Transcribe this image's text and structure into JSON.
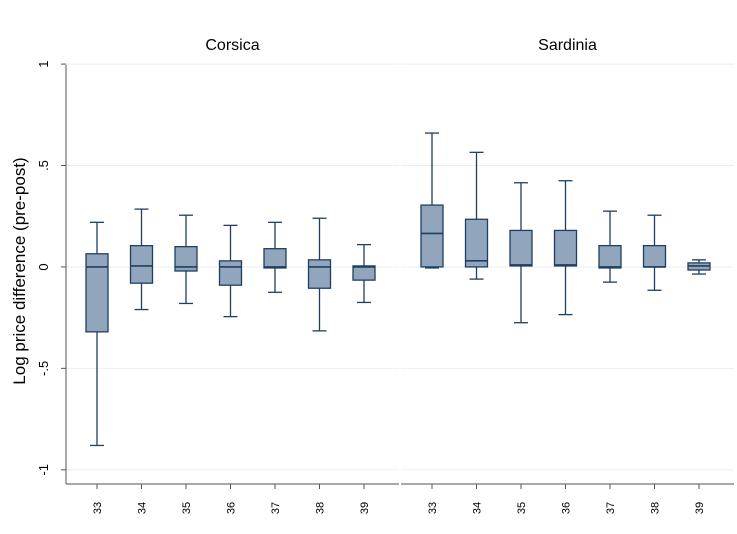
{
  "chart_data": {
    "type": "box",
    "ylabel": "Log price difference (pre-post)",
    "ylim": [
      -1.07,
      1.03
    ],
    "yticks": [
      1,
      0.5,
      0,
      -0.5,
      -1
    ],
    "ytick_labels": [
      "1",
      ".5",
      "0",
      "-.5",
      "-1"
    ],
    "grid": true,
    "colors": {
      "box_fill": "#91a6bd",
      "box_stroke": "#1f3f5f",
      "grid": "#eeeeee",
      "axis": "#000000"
    },
    "panels": [
      {
        "title": "Corsica",
        "categories": [
          "33",
          "34",
          "35",
          "36",
          "37",
          "38",
          "39"
        ],
        "boxes": [
          {
            "whisker_low": -0.88,
            "q1": -0.32,
            "median": 0.0,
            "q3": 0.065,
            "whisker_high": 0.22
          },
          {
            "whisker_low": -0.21,
            "q1": -0.08,
            "median": 0.005,
            "q3": 0.105,
            "whisker_high": 0.285
          },
          {
            "whisker_low": -0.18,
            "q1": -0.02,
            "median": 0.0,
            "q3": 0.1,
            "whisker_high": 0.255
          },
          {
            "whisker_low": -0.245,
            "q1": -0.09,
            "median": 0.0,
            "q3": 0.03,
            "whisker_high": 0.205
          },
          {
            "whisker_low": -0.125,
            "q1": -0.005,
            "median": 0.0,
            "q3": 0.09,
            "whisker_high": 0.22
          },
          {
            "whisker_low": -0.315,
            "q1": -0.105,
            "median": 0.0,
            "q3": 0.035,
            "whisker_high": 0.24
          },
          {
            "whisker_low": -0.175,
            "q1": -0.065,
            "median": 0.0,
            "q3": 0.005,
            "whisker_high": 0.11
          }
        ]
      },
      {
        "title": "Sardinia",
        "categories": [
          "33",
          "34",
          "35",
          "36",
          "37",
          "38",
          "39"
        ],
        "boxes": [
          {
            "whisker_low": -0.005,
            "q1": 0.0,
            "median": 0.165,
            "q3": 0.305,
            "whisker_high": 0.66
          },
          {
            "whisker_low": -0.06,
            "q1": 0.0,
            "median": 0.03,
            "q3": 0.235,
            "whisker_high": 0.565
          },
          {
            "whisker_low": -0.275,
            "q1": 0.005,
            "median": 0.01,
            "q3": 0.18,
            "whisker_high": 0.415
          },
          {
            "whisker_low": -0.235,
            "q1": 0.005,
            "median": 0.01,
            "q3": 0.18,
            "whisker_high": 0.425
          },
          {
            "whisker_low": -0.075,
            "q1": -0.005,
            "median": 0.0,
            "q3": 0.105,
            "whisker_high": 0.275
          },
          {
            "whisker_low": -0.115,
            "q1": 0.0,
            "median": 0.0,
            "q3": 0.105,
            "whisker_high": 0.255
          },
          {
            "whisker_low": -0.035,
            "q1": -0.015,
            "median": 0.005,
            "q3": 0.02,
            "whisker_high": 0.035
          }
        ]
      }
    ]
  }
}
